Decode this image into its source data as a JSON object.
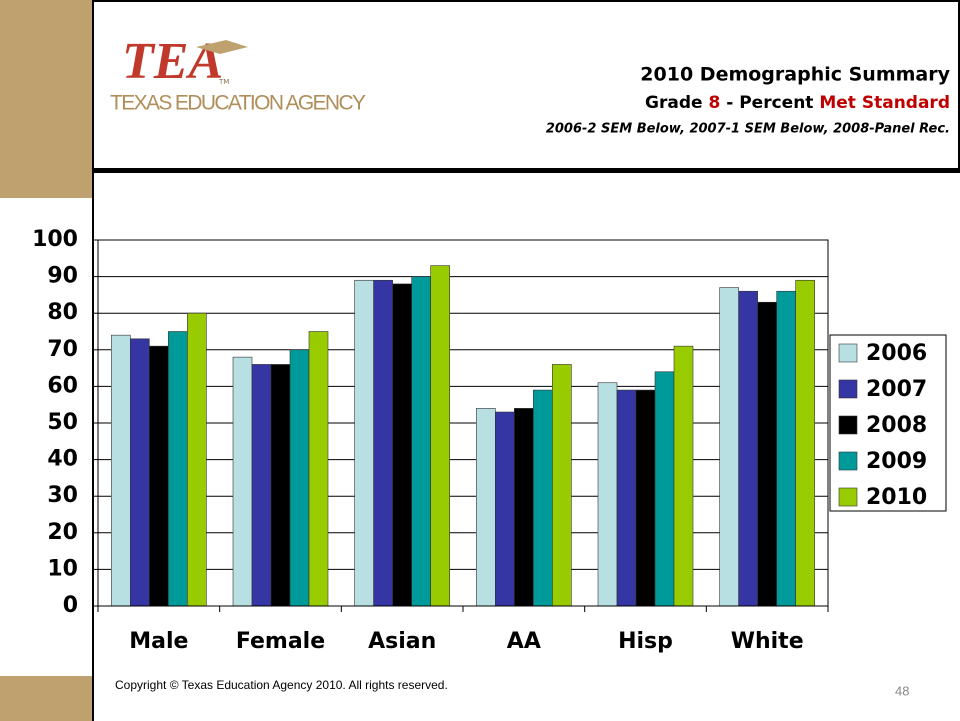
{
  "logo": {
    "mark": "TEA",
    "tm": "TM",
    "name": "TEXAS EDUCATION AGENCY"
  },
  "chart_data": {
    "type": "bar",
    "title": "2010 Demographic Summary",
    "subtitle_parts": [
      "Grade",
      "8",
      "-  Percent",
      "Met Standard"
    ],
    "note": "2006-2 SEM Below,   2007-1 SEM Below,   2008-Panel Rec.",
    "categories": [
      "Male",
      "Female",
      "Asian",
      "AA",
      "Hisp",
      "White"
    ],
    "series": [
      {
        "name": "2006",
        "color": "#b8dfe2",
        "values": [
          74,
          68,
          89,
          54,
          61,
          87
        ]
      },
      {
        "name": "2007",
        "color": "#3535a3",
        "values": [
          73,
          66,
          89,
          53,
          59,
          86
        ]
      },
      {
        "name": "2008",
        "color": "#000000",
        "values": [
          71,
          66,
          88,
          54,
          59,
          83
        ]
      },
      {
        "name": "2009",
        "color": "#009a9a",
        "values": [
          75,
          70,
          90,
          59,
          64,
          86
        ]
      },
      {
        "name": "2010",
        "color": "#99cc00",
        "values": [
          80,
          75,
          93,
          66,
          71,
          89
        ]
      }
    ],
    "ylim": [
      0,
      100
    ],
    "yticks": [
      0,
      10,
      20,
      30,
      40,
      50,
      60,
      70,
      80,
      90,
      100
    ],
    "grid": true,
    "legend": "right"
  },
  "footer": {
    "copyright": "Copyright © Texas Education Agency 2010. All rights reserved.",
    "page": "48"
  }
}
